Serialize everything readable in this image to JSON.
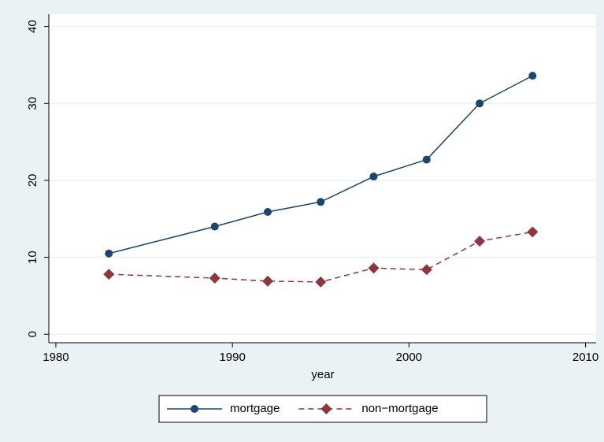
{
  "chart_data": {
    "type": "line",
    "x_label": "year",
    "x": [
      1983,
      1989,
      1992,
      1995,
      1998,
      2001,
      2004,
      2007
    ],
    "series": [
      {
        "name": "mortgage",
        "color": "#1a476f",
        "line_style": "solid",
        "marker": "circle",
        "values": [
          10.5,
          14.0,
          15.9,
          17.2,
          20.5,
          22.7,
          30.0,
          33.6
        ]
      },
      {
        "name": "non−mortgage",
        "color": "#90353b",
        "line_style": "dashed",
        "marker": "diamond",
        "values": [
          7.8,
          7.3,
          6.9,
          6.8,
          8.6,
          8.4,
          12.1,
          13.3
        ]
      }
    ],
    "xlim": [
      1979.6,
      2010.6
    ],
    "xticks": [
      1980,
      1990,
      2000,
      2010
    ],
    "ylim": [
      -1.1,
      41.6
    ],
    "yticks": [
      0,
      10,
      20,
      30,
      40
    ],
    "grid": true,
    "legend": "bottom"
  }
}
